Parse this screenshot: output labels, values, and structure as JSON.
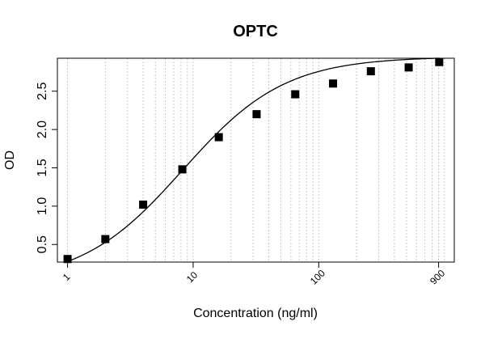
{
  "chart_data": {
    "type": "scatter",
    "title": "OPTC",
    "xlabel": "Concentration (ng/ml)",
    "ylabel": "OD",
    "x_scale": "log",
    "xlim": [
      0.83,
      1200
    ],
    "ylim": [
      0.27,
      2.93
    ],
    "x_ticks": [
      1,
      10,
      100,
      900
    ],
    "x_tick_labels": [
      "1",
      "10",
      "100",
      "900"
    ],
    "y_ticks": [
      0.5,
      1.0,
      1.5,
      2.0,
      2.5
    ],
    "y_tick_labels": [
      "0.5",
      "1.0",
      "1.5",
      "2.0",
      "2.5"
    ],
    "grid": "vertical dotted at log minor ticks",
    "series": [
      {
        "marker": "square",
        "color": "#000000",
        "x": [
          1,
          2,
          4,
          8.2,
          16,
          32,
          65,
          130,
          260,
          520,
          910
        ],
        "y": [
          0.31,
          0.57,
          1.02,
          1.48,
          1.9,
          2.2,
          2.46,
          2.6,
          2.76,
          2.81,
          2.88
        ]
      }
    ],
    "fit_curve": {
      "type": "4PL",
      "bottom": 0.0,
      "top": 2.95,
      "ec50": 8.3,
      "hill": 1.07
    }
  }
}
